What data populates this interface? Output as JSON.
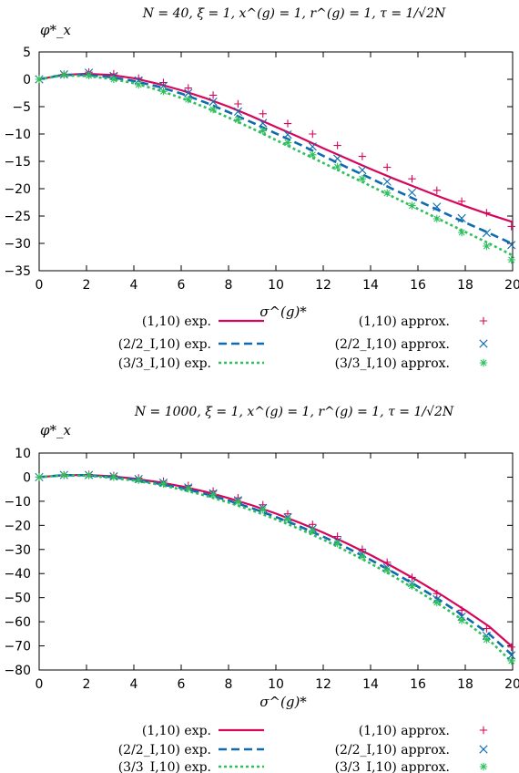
{
  "chart_data": [
    {
      "type": "line",
      "title": "N = 40, ξ = 1, x^(g) = 1, r^(g) = 1, τ = 1/√2N",
      "ylabel": "φ*_x",
      "xlabel": "σ^(g)*",
      "xlim": [
        0,
        20
      ],
      "ylim": [
        -35,
        5
      ],
      "xticks": [
        0,
        2,
        4,
        6,
        8,
        10,
        12,
        14,
        16,
        18,
        20
      ],
      "yticks": [
        5,
        0,
        -5,
        -10,
        -15,
        -20,
        -25,
        -30,
        -35
      ],
      "legend_placement": "bottom",
      "series": [
        {
          "name": "(1,10) exp.",
          "style": "solid",
          "color": "#d6075a",
          "x": [
            0,
            1,
            2,
            3,
            4,
            5,
            6,
            7,
            8,
            9,
            10,
            11,
            12,
            13,
            14,
            15,
            16,
            17,
            18,
            19,
            20
          ],
          "y": [
            0,
            0.8,
            1.0,
            0.8,
            0.2,
            -0.8,
            -2.0,
            -3.4,
            -5.0,
            -6.8,
            -8.7,
            -10.6,
            -12.6,
            -14.5,
            -16.4,
            -18.2,
            -19.9,
            -21.6,
            -23.2,
            -24.7,
            -26.1
          ]
        },
        {
          "name": "(2/2_I,10) exp.",
          "style": "dashed",
          "color": "#0e6bb0",
          "x": [
            0,
            1,
            2,
            3,
            4,
            5,
            6,
            7,
            8,
            9,
            10,
            11,
            12,
            13,
            14,
            15,
            16,
            17,
            18,
            19,
            20
          ],
          "y": [
            0,
            0.8,
            0.8,
            0.4,
            -0.3,
            -1.3,
            -2.6,
            -4.2,
            -6.0,
            -7.9,
            -9.9,
            -11.9,
            -14.0,
            -16.1,
            -18.1,
            -20.2,
            -22.2,
            -24.2,
            -26.2,
            -28.1,
            -30.1
          ]
        },
        {
          "name": "(3/3_I,10) exp.",
          "style": "dotted",
          "color": "#2ebf5c",
          "x": [
            0,
            1,
            2,
            3,
            4,
            5,
            6,
            7,
            8,
            9,
            10,
            11,
            12,
            13,
            14,
            15,
            16,
            17,
            18,
            19,
            20
          ],
          "y": [
            0,
            0.7,
            0.6,
            0.1,
            -0.7,
            -1.9,
            -3.4,
            -5.1,
            -7.0,
            -9.0,
            -11.1,
            -13.2,
            -15.3,
            -17.4,
            -19.5,
            -21.6,
            -23.7,
            -25.8,
            -27.9,
            -30.0,
            -32.2
          ]
        },
        {
          "name": "(1,10) approx.",
          "style": "marker",
          "marker": "plus",
          "color": "#d6075a",
          "x": [
            0,
            1.05,
            2.1,
            3.15,
            4.2,
            5.25,
            6.3,
            7.35,
            8.4,
            9.45,
            10.5,
            11.55,
            12.6,
            13.65,
            14.7,
            15.75,
            16.8,
            17.85,
            18.9,
            19.95
          ],
          "y": [
            0,
            0.9,
            1.3,
            1.0,
            0.2,
            -0.6,
            -1.6,
            -2.9,
            -4.5,
            -6.3,
            -8.1,
            -10.0,
            -12.1,
            -14.1,
            -16.1,
            -18.2,
            -20.3,
            -22.3,
            -24.4,
            -26.9
          ]
        },
        {
          "name": "(2/2_I,10) approx.",
          "style": "marker",
          "marker": "cross",
          "color": "#0e6bb0",
          "x": [
            0,
            1.05,
            2.1,
            3.15,
            4.2,
            5.25,
            6.3,
            7.35,
            8.4,
            9.45,
            10.5,
            11.55,
            12.6,
            13.65,
            14.7,
            15.75,
            16.8,
            17.85,
            18.9,
            19.95
          ],
          "y": [
            0,
            0.9,
            1.2,
            0.6,
            -0.2,
            -1.2,
            -2.5,
            -4.1,
            -5.9,
            -8.0,
            -10.1,
            -12.3,
            -14.5,
            -16.6,
            -18.7,
            -20.7,
            -23.3,
            -25.4,
            -28.1,
            -30.3
          ]
        },
        {
          "name": "(3/3_I,10) approx.",
          "style": "marker",
          "marker": "star",
          "color": "#2ebf5c",
          "x": [
            0,
            1.05,
            2.1,
            3.15,
            4.2,
            5.25,
            6.3,
            7.35,
            8.4,
            9.45,
            10.5,
            11.55,
            12.6,
            13.65,
            14.7,
            15.75,
            16.8,
            17.85,
            18.9,
            19.95
          ],
          "y": [
            0,
            0.8,
            0.7,
            0.0,
            -1.0,
            -2.2,
            -3.7,
            -5.5,
            -7.4,
            -9.4,
            -11.6,
            -13.8,
            -16.0,
            -18.2,
            -20.8,
            -23.1,
            -25.5,
            -28.0,
            -30.5,
            -33.0
          ]
        }
      ]
    },
    {
      "type": "line",
      "title": "N = 1000, ξ = 1, x^(g) = 1, r^(g) = 1, τ = 1/√2N",
      "ylabel": "φ*_x",
      "xlabel": "σ^(g)*",
      "xlim": [
        0,
        20
      ],
      "ylim": [
        -80,
        10
      ],
      "xticks": [
        0,
        2,
        4,
        6,
        8,
        10,
        12,
        14,
        16,
        18,
        20
      ],
      "yticks": [
        10,
        0,
        -10,
        -20,
        -30,
        -40,
        -50,
        -60,
        -70,
        -80
      ],
      "legend_placement": "bottom",
      "series": [
        {
          "name": "(1,10) exp.",
          "style": "solid",
          "color": "#d6075a",
          "x": [
            0,
            1,
            2,
            3,
            4,
            5,
            6,
            7,
            8,
            9,
            10,
            11,
            12,
            13,
            14,
            15,
            16,
            17,
            18,
            19,
            20
          ],
          "y": [
            0,
            0.8,
            0.9,
            0.4,
            -0.6,
            -2.0,
            -3.8,
            -6.0,
            -8.7,
            -11.7,
            -15.1,
            -18.9,
            -23.0,
            -27.5,
            -32.3,
            -37.5,
            -43.0,
            -48.9,
            -55.2,
            -61.9,
            -70.5
          ]
        },
        {
          "name": "(2/2_I,10) exp.",
          "style": "dashed",
          "color": "#0e6bb0",
          "x": [
            0,
            1,
            2,
            3,
            4,
            5,
            6,
            7,
            8,
            9,
            10,
            11,
            12,
            13,
            14,
            15,
            16,
            17,
            18,
            19,
            20
          ],
          "y": [
            0,
            0.8,
            0.8,
            0.1,
            -1.0,
            -2.6,
            -4.5,
            -6.9,
            -9.7,
            -12.9,
            -16.5,
            -20.4,
            -24.7,
            -29.3,
            -34.3,
            -39.7,
            -45.4,
            -51.5,
            -58.0,
            -65.0,
            -74.0
          ]
        },
        {
          "name": "(3/3_I,10) exp.",
          "style": "dotted",
          "color": "#2ebf5c",
          "x": [
            0,
            1,
            2,
            3,
            4,
            5,
            6,
            7,
            8,
            9,
            10,
            11,
            12,
            13,
            14,
            15,
            16,
            17,
            18,
            19,
            20
          ],
          "y": [
            0,
            0.7,
            0.6,
            -0.2,
            -1.4,
            -3.0,
            -5.1,
            -7.6,
            -10.5,
            -13.8,
            -17.5,
            -21.5,
            -25.9,
            -30.7,
            -35.8,
            -41.3,
            -47.2,
            -53.4,
            -60.0,
            -67.5,
            -77.0
          ]
        },
        {
          "name": "(1,10) approx.",
          "style": "marker",
          "marker": "plus",
          "color": "#d6075a",
          "x": [
            0,
            1.05,
            2.1,
            3.15,
            4.2,
            5.25,
            6.3,
            7.35,
            8.4,
            9.45,
            10.5,
            11.55,
            12.6,
            13.65,
            14.7,
            15.75,
            16.8,
            17.85,
            18.9,
            19.95
          ],
          "y": [
            0,
            0.9,
            1.1,
            0.6,
            -0.4,
            -1.7,
            -3.5,
            -5.8,
            -8.6,
            -11.5,
            -15.2,
            -19.6,
            -24.6,
            -29.9,
            -35.3,
            -41.6,
            -48.3,
            -55.2,
            -62.8,
            -70.5
          ]
        },
        {
          "name": "(2/2_I,10) approx.",
          "style": "marker",
          "marker": "cross",
          "color": "#0e6bb0",
          "x": [
            0,
            1.05,
            2.1,
            3.15,
            4.2,
            5.25,
            6.3,
            7.35,
            8.4,
            9.45,
            10.5,
            11.55,
            12.6,
            13.65,
            14.7,
            15.75,
            16.8,
            17.85,
            18.9,
            19.95
          ],
          "y": [
            0,
            0.9,
            0.9,
            0.3,
            -0.8,
            -2.3,
            -4.3,
            -6.7,
            -9.6,
            -12.8,
            -16.7,
            -21.4,
            -26.6,
            -31.9,
            -37.5,
            -43.9,
            -50.7,
            -57.9,
            -65.8,
            -73.9
          ]
        },
        {
          "name": "(3/3_I,10) approx.",
          "style": "marker",
          "marker": "star",
          "color": "#2ebf5c",
          "x": [
            0,
            1.05,
            2.1,
            3.15,
            4.2,
            5.25,
            6.3,
            7.35,
            8.4,
            9.45,
            10.5,
            11.55,
            12.6,
            13.65,
            14.7,
            15.75,
            16.8,
            17.85,
            18.9,
            19.95
          ],
          "y": [
            0,
            0.8,
            0.7,
            0.0,
            -1.2,
            -2.8,
            -4.8,
            -7.3,
            -10.3,
            -13.5,
            -17.5,
            -22.2,
            -27.5,
            -32.9,
            -38.6,
            -45.1,
            -52.0,
            -59.4,
            -67.4,
            -76.2
          ]
        }
      ]
    }
  ]
}
